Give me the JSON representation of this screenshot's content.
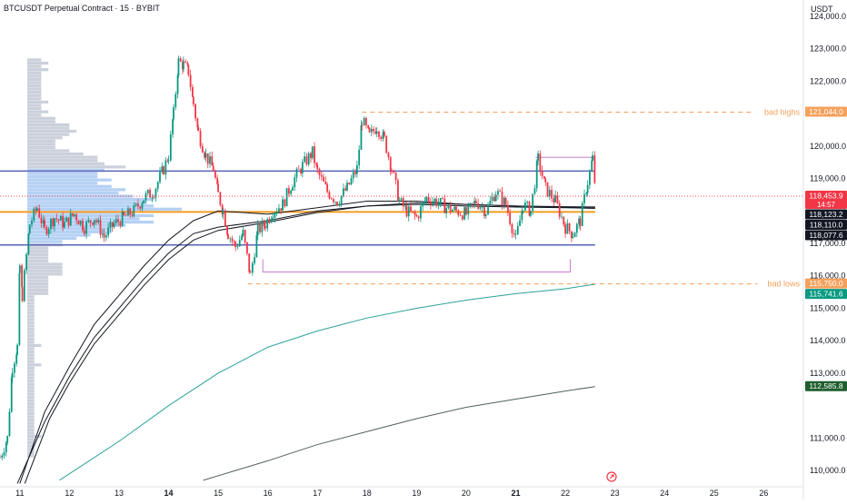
{
  "header": {
    "title": "BTCUSDT Perpetual Contract · 15 · BYBIT",
    "currency": "USDT"
  },
  "colors": {
    "up": "#089981",
    "down": "#f23645",
    "orange": "#f5a15c",
    "level_line": "#5a63b5",
    "poc_line": "#f59a23",
    "ma_teal": "#2aa198",
    "ma_grey": "#50605a",
    "ma_black": "#131722",
    "profile_blue": "#a8c9f2",
    "profile_grey": "#b5bccb",
    "purple_box": "#c77dce",
    "bg": "#ffffff",
    "axis_text": "#131722"
  },
  "chart_data": {
    "type": "candlestick",
    "x_range": [
      10.6,
      26.8
    ],
    "ylim": [
      109500,
      124500
    ],
    "x_ticks": [
      {
        "value": 11,
        "label": "11"
      },
      {
        "value": 12,
        "label": "12"
      },
      {
        "value": 13,
        "label": "13"
      },
      {
        "value": 14,
        "label": "14"
      },
      {
        "value": 15,
        "label": "15"
      },
      {
        "value": 16,
        "label": "16"
      },
      {
        "value": 17,
        "label": "17"
      },
      {
        "value": 18,
        "label": "18"
      },
      {
        "value": 19,
        "label": "19"
      },
      {
        "value": 20,
        "label": "20"
      },
      {
        "value": 21,
        "label": "21"
      },
      {
        "value": 22,
        "label": "22"
      },
      {
        "value": 23,
        "label": "23"
      },
      {
        "value": 24,
        "label": "24"
      },
      {
        "value": 25,
        "label": "25"
      },
      {
        "value": 26,
        "label": "26"
      }
    ],
    "y_ticks": [
      {
        "value": 124000,
        "label": "124,000.0"
      },
      {
        "value": 123000,
        "label": "123,000.0"
      },
      {
        "value": 122000,
        "label": "122,000.0"
      },
      {
        "value": 120000,
        "label": "120,000.0"
      },
      {
        "value": 119000,
        "label": "119,000.0"
      },
      {
        "value": 117000,
        "label": "117,000.0"
      },
      {
        "value": 116000,
        "label": "116,000.0"
      },
      {
        "value": 115000,
        "label": "115,000.0"
      },
      {
        "value": 114000,
        "label": "114,000.0"
      },
      {
        "value": 113000,
        "label": "113,000.0"
      },
      {
        "value": 111000,
        "label": "111,000.0"
      },
      {
        "value": 110000,
        "label": "110,000.0"
      }
    ],
    "price_tags": [
      {
        "value": 121044.0,
        "label": "121,044.0",
        "color": "#f5a15c"
      },
      {
        "value": 118453.9,
        "label": "118,453.9",
        "sub": "14:57",
        "color": "#f23645"
      },
      {
        "value": 118123.2,
        "label": "118,123.2",
        "color": "#131722"
      },
      {
        "value": 118110.0,
        "label": "118,110.0",
        "color": "#131722"
      },
      {
        "value": 118077.6,
        "label": "118,077.6",
        "color": "#131722"
      },
      {
        "value": 115750.0,
        "label": "115,750.0",
        "color": "#f5a15c"
      },
      {
        "value": 115741.6,
        "label": "115,741.6",
        "color": "#089981"
      },
      {
        "value": 112585.8,
        "label": "112,585.8",
        "color": "#1e5e2f"
      }
    ],
    "annotations": [
      {
        "text": "bad highs",
        "value": 121044.0,
        "x_start": 17.9
      },
      {
        "text": "bad lows",
        "value": 115750.0,
        "x_start": 15.6
      }
    ],
    "horizontal_levels": [
      {
        "value": 119230,
        "x_start": 10.6,
        "x_end": 22.6,
        "role": "value-area-high"
      },
      {
        "value": 117970,
        "x_start": 10.6,
        "x_end": 22.6,
        "role": "point-of-control"
      },
      {
        "value": 116950,
        "x_start": 10.6,
        "x_end": 22.6,
        "role": "value-area-low"
      }
    ],
    "ranges": [
      {
        "x": [
          21.4,
          22.6
        ],
        "y_top": 119650,
        "y_bottom": null
      },
      {
        "x": [
          15.9,
          22.1
        ],
        "y_top": null,
        "y_bottom": 116120
      }
    ],
    "price_path": [
      [
        10.6,
        110400
      ],
      [
        10.75,
        111000
      ],
      [
        10.85,
        113200
      ],
      [
        10.95,
        113800
      ],
      [
        11.0,
        116300
      ],
      [
        11.05,
        115400
      ],
      [
        11.2,
        117600
      ],
      [
        11.35,
        118100
      ],
      [
        11.5,
        117400
      ],
      [
        11.7,
        117800
      ],
      [
        11.9,
        117600
      ],
      [
        12.1,
        117900
      ],
      [
        12.3,
        117500
      ],
      [
        12.5,
        117800
      ],
      [
        12.7,
        117200
      ],
      [
        12.9,
        117600
      ],
      [
        13.1,
        117800
      ],
      [
        13.3,
        118000
      ],
      [
        13.5,
        118400
      ],
      [
        13.7,
        118600
      ],
      [
        13.9,
        119300
      ],
      [
        14.0,
        119700
      ],
      [
        14.1,
        121000
      ],
      [
        14.2,
        122600
      ],
      [
        14.3,
        122500
      ],
      [
        14.4,
        122300
      ],
      [
        14.5,
        121300
      ],
      [
        14.6,
        120400
      ],
      [
        14.75,
        119700
      ],
      [
        14.9,
        119300
      ],
      [
        15.0,
        118500
      ],
      [
        15.1,
        118000
      ],
      [
        15.2,
        117300
      ],
      [
        15.35,
        116900
      ],
      [
        15.5,
        117300
      ],
      [
        15.65,
        116000
      ],
      [
        15.8,
        117400
      ],
      [
        15.95,
        117600
      ],
      [
        16.1,
        118000
      ],
      [
        16.3,
        118200
      ],
      [
        16.5,
        118900
      ],
      [
        16.7,
        119400
      ],
      [
        16.9,
        119800
      ],
      [
        17.0,
        119200
      ],
      [
        17.2,
        118600
      ],
      [
        17.4,
        118300
      ],
      [
        17.6,
        118700
      ],
      [
        17.8,
        119300
      ],
      [
        17.9,
        120800
      ],
      [
        18.05,
        120300
      ],
      [
        18.2,
        120600
      ],
      [
        18.35,
        120200
      ],
      [
        18.5,
        119300
      ],
      [
        18.65,
        118300
      ],
      [
        18.8,
        118000
      ],
      [
        19.0,
        117800
      ],
      [
        19.2,
        118400
      ],
      [
        19.4,
        118300
      ],
      [
        19.6,
        118100
      ],
      [
        19.8,
        118000
      ],
      [
        20.0,
        117900
      ],
      [
        20.2,
        118300
      ],
      [
        20.4,
        118000
      ],
      [
        20.6,
        118600
      ],
      [
        20.8,
        118200
      ],
      [
        21.0,
        117100
      ],
      [
        21.15,
        118200
      ],
      [
        21.3,
        118000
      ],
      [
        21.45,
        119600
      ],
      [
        21.6,
        118700
      ],
      [
        21.8,
        118300
      ],
      [
        22.0,
        117500
      ],
      [
        22.15,
        117300
      ],
      [
        22.3,
        117700
      ],
      [
        22.45,
        118900
      ],
      [
        22.55,
        119600
      ],
      [
        22.62,
        118450
      ]
    ],
    "lines": [
      {
        "color": "#2aa198",
        "points": [
          [
            11.8,
            109700
          ],
          [
            13,
            110900
          ],
          [
            14,
            112000
          ],
          [
            15,
            113000
          ],
          [
            16,
            113800
          ],
          [
            17,
            114300
          ],
          [
            18,
            114700
          ],
          [
            19,
            115000
          ],
          [
            20,
            115250
          ],
          [
            21,
            115450
          ],
          [
            22,
            115600
          ],
          [
            22.6,
            115740
          ]
        ]
      },
      {
        "color": "#50605a",
        "points": [
          [
            14.7,
            109700
          ],
          [
            16,
            110300
          ],
          [
            17,
            110800
          ],
          [
            18,
            111200
          ],
          [
            19,
            111600
          ],
          [
            20,
            111950
          ],
          [
            21,
            112200
          ],
          [
            22,
            112450
          ],
          [
            22.6,
            112585
          ]
        ]
      },
      {
        "color": "#131722",
        "points": [
          [
            10.95,
            109600
          ],
          [
            11.5,
            111500
          ],
          [
            12,
            112900
          ],
          [
            12.5,
            114100
          ],
          [
            13,
            115000
          ],
          [
            13.5,
            115900
          ],
          [
            14,
            116700
          ],
          [
            14.5,
            117300
          ],
          [
            15,
            117500
          ],
          [
            16,
            117700
          ],
          [
            17,
            118000
          ],
          [
            18,
            118150
          ],
          [
            19,
            118200
          ],
          [
            20,
            118150
          ],
          [
            21,
            118120
          ],
          [
            22,
            118100
          ],
          [
            22.6,
            118077
          ]
        ]
      },
      {
        "color": "#131722",
        "points": [
          [
            11.1,
            109600
          ],
          [
            11.6,
            111600
          ],
          [
            12,
            112700
          ],
          [
            12.5,
            113900
          ],
          [
            13,
            114800
          ],
          [
            13.5,
            115700
          ],
          [
            14,
            116500
          ],
          [
            14.5,
            117100
          ],
          [
            15,
            117400
          ],
          [
            16,
            117650
          ],
          [
            17,
            117950
          ],
          [
            18,
            118150
          ],
          [
            19,
            118250
          ],
          [
            20,
            118200
          ],
          [
            21,
            118150
          ],
          [
            22,
            118120
          ],
          [
            22.6,
            118110
          ]
        ]
      },
      {
        "color": "#131722",
        "points": [
          [
            11.0,
            109600
          ],
          [
            11.5,
            111800
          ],
          [
            12,
            113200
          ],
          [
            12.5,
            114500
          ],
          [
            13,
            115400
          ],
          [
            13.5,
            116300
          ],
          [
            14,
            117100
          ],
          [
            14.5,
            117700
          ],
          [
            15,
            118000
          ],
          [
            16,
            117900
          ],
          [
            17,
            118100
          ],
          [
            18,
            118300
          ],
          [
            19,
            118300
          ],
          [
            20,
            118200
          ],
          [
            21,
            118150
          ],
          [
            22,
            118130
          ],
          [
            22.6,
            118123
          ]
        ]
      }
    ]
  }
}
